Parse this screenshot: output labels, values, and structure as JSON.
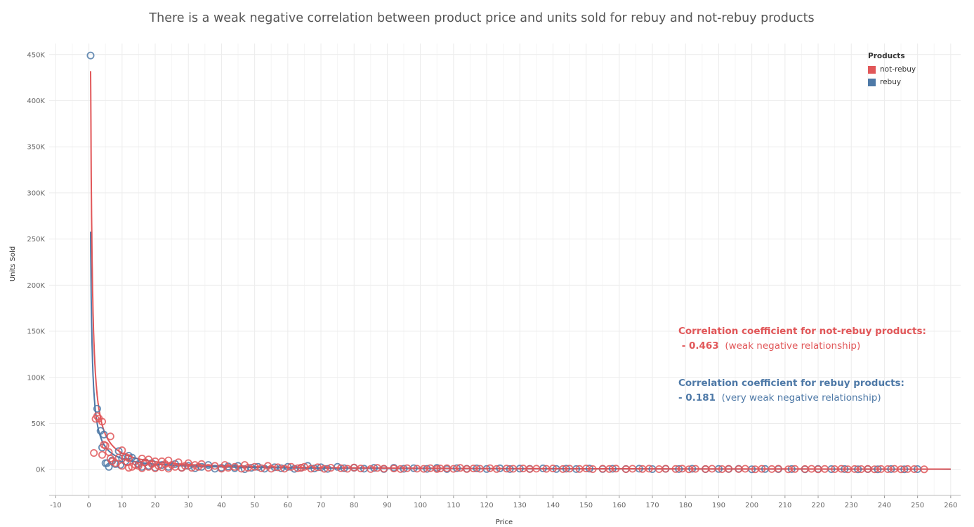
{
  "colors": {
    "not_rebuy": "#E15759",
    "rebuy": "#4E79A7",
    "grid": "#ececec",
    "text": "#555555"
  },
  "legend": {
    "title": "Products",
    "items": [
      {
        "label": "not-rebuy",
        "color": "#E15759"
      },
      {
        "label": "rebuy",
        "color": "#4E79A7"
      }
    ]
  },
  "annotations": {
    "not_rebuy": {
      "line1": "Correlation coefficient  for  not-rebuy products:",
      "value": " - 0.463",
      "desc": "(weak negative relationship)"
    },
    "rebuy": {
      "line1": "Correlation coefficient  for rebuy products:",
      "value": "- 0.181",
      "desc": "(very weak negative relationship)"
    }
  },
  "chart_data": {
    "type": "scatter",
    "title": "There is a weak negative correlation between product price and units sold for rebuy and not-rebuy products",
    "xlabel": "Price",
    "ylabel": "Units Sold",
    "xlim": [
      -12,
      263
    ],
    "ylim": [
      -28000,
      462000
    ],
    "x_ticks": [
      -10,
      0,
      10,
      20,
      30,
      40,
      50,
      60,
      70,
      80,
      90,
      100,
      110,
      120,
      130,
      140,
      150,
      160,
      170,
      180,
      190,
      200,
      210,
      220,
      230,
      240,
      250,
      260
    ],
    "y_ticks": [
      0,
      50000,
      100000,
      150000,
      200000,
      250000,
      300000,
      350000,
      400000,
      450000
    ],
    "y_tick_labels": [
      "0K",
      "50K",
      "100K",
      "150K",
      "200K",
      "250K",
      "300K",
      "350K",
      "400K",
      "450K"
    ],
    "grid": true,
    "legend_position": "top-right",
    "series": [
      {
        "name": "not-rebuy",
        "color": "#E15759",
        "points": [
          [
            1.5,
            18000
          ],
          [
            2,
            55000
          ],
          [
            2.5,
            58000
          ],
          [
            3,
            55500
          ],
          [
            4,
            52000
          ],
          [
            4,
            16000
          ],
          [
            4.5,
            27000
          ],
          [
            5,
            26000
          ],
          [
            6,
            19000
          ],
          [
            6.5,
            36000
          ],
          [
            6.5,
            12000
          ],
          [
            7,
            9000
          ],
          [
            8,
            7000
          ],
          [
            9,
            13000
          ],
          [
            10,
            21000
          ],
          [
            10,
            4000
          ],
          [
            11,
            14000
          ],
          [
            11.5,
            8000
          ],
          [
            12,
            12500
          ],
          [
            12,
            2000
          ],
          [
            13,
            3000
          ],
          [
            14,
            5000
          ],
          [
            15,
            4000
          ],
          [
            16,
            12000
          ],
          [
            16,
            1500
          ],
          [
            17,
            8000
          ],
          [
            18,
            3000
          ],
          [
            18,
            11000
          ],
          [
            19,
            6000
          ],
          [
            20,
            9000
          ],
          [
            20,
            1500
          ],
          [
            21,
            4000
          ],
          [
            22,
            9000
          ],
          [
            22,
            2500
          ],
          [
            23,
            6000
          ],
          [
            24,
            10000
          ],
          [
            24,
            1000
          ],
          [
            25,
            5000
          ],
          [
            26,
            3000
          ],
          [
            27,
            8000
          ],
          [
            28,
            2000
          ],
          [
            29,
            4000
          ],
          [
            30,
            7000
          ],
          [
            31,
            2000
          ],
          [
            32,
            5000
          ],
          [
            33,
            3000
          ],
          [
            34,
            6000
          ],
          [
            36,
            2000
          ],
          [
            38,
            4000
          ],
          [
            40,
            1000
          ],
          [
            41,
            5000
          ],
          [
            42,
            2000
          ],
          [
            44,
            3000
          ],
          [
            46,
            1000
          ],
          [
            47,
            5000
          ],
          [
            48,
            2000
          ],
          [
            50,
            3000
          ],
          [
            52,
            1500
          ],
          [
            54,
            4000
          ],
          [
            55,
            1000
          ],
          [
            57,
            2500
          ],
          [
            59,
            1000
          ],
          [
            61,
            3000
          ],
          [
            63,
            1500
          ],
          [
            64,
            2000
          ],
          [
            65,
            3000
          ],
          [
            67,
            1000
          ],
          [
            69,
            2500
          ],
          [
            71,
            800
          ],
          [
            73,
            2000
          ],
          [
            76,
            1500
          ],
          [
            78,
            900
          ],
          [
            80,
            2200
          ],
          [
            82,
            1200
          ],
          [
            85,
            600
          ],
          [
            87,
            1800
          ],
          [
            89,
            1000
          ],
          [
            92,
            1200
          ],
          [
            94,
            600
          ],
          [
            96,
            1500
          ],
          [
            99,
            1000
          ],
          [
            101,
            800
          ],
          [
            103,
            1500
          ],
          [
            105,
            600
          ],
          [
            106,
            1200
          ],
          [
            108,
            1500
          ],
          [
            110,
            800
          ],
          [
            112,
            1800
          ],
          [
            114,
            700
          ],
          [
            116,
            1200
          ],
          [
            118,
            900
          ],
          [
            121,
            1500
          ],
          [
            123,
            700
          ],
          [
            126,
            1100
          ],
          [
            128,
            900
          ],
          [
            131,
            1200
          ],
          [
            133,
            600
          ],
          [
            135,
            1000
          ],
          [
            138,
            800
          ],
          [
            140,
            1200
          ],
          [
            143,
            600
          ],
          [
            145,
            1000
          ],
          [
            148,
            700
          ],
          [
            150,
            1200
          ],
          [
            152,
            500
          ],
          [
            155,
            900
          ],
          [
            157,
            700
          ],
          [
            159,
            1100
          ],
          [
            162,
            500
          ],
          [
            164,
            900
          ],
          [
            167,
            700
          ],
          [
            169,
            1000
          ],
          [
            172,
            500
          ],
          [
            174,
            900
          ],
          [
            177,
            700
          ],
          [
            179,
            1000
          ],
          [
            181,
            400
          ],
          [
            183,
            800
          ],
          [
            186,
            600
          ],
          [
            188,
            900
          ],
          [
            191,
            500
          ],
          [
            193,
            800
          ],
          [
            196,
            600
          ],
          [
            198,
            900
          ],
          [
            201,
            400
          ],
          [
            203,
            800
          ],
          [
            206,
            600
          ],
          [
            208,
            900
          ],
          [
            211,
            400
          ],
          [
            213,
            700
          ],
          [
            216,
            600
          ],
          [
            218,
            800
          ],
          [
            220,
            400
          ],
          [
            222,
            700
          ],
          [
            225,
            500
          ],
          [
            227,
            800
          ],
          [
            229,
            400
          ],
          [
            231,
            600
          ],
          [
            233,
            500
          ],
          [
            235,
            700
          ],
          [
            237,
            400
          ],
          [
            239,
            600
          ],
          [
            241,
            500
          ],
          [
            243,
            800
          ],
          [
            245,
            400
          ],
          [
            247,
            600
          ],
          [
            249,
            500
          ],
          [
            252,
            300
          ]
        ]
      },
      {
        "name": "rebuy",
        "color": "#4E79A7",
        "points": [
          [
            0.5,
            449000
          ],
          [
            2.5,
            66000
          ],
          [
            3.5,
            42000
          ],
          [
            4,
            24000
          ],
          [
            4.5,
            38000
          ],
          [
            5,
            7000
          ],
          [
            5.5,
            7000
          ],
          [
            6,
            3000
          ],
          [
            7,
            10000
          ],
          [
            8,
            6000
          ],
          [
            9,
            20000
          ],
          [
            9.5,
            5000
          ],
          [
            10,
            12000
          ],
          [
            11,
            9000
          ],
          [
            12,
            15000
          ],
          [
            13,
            13000
          ],
          [
            14,
            9000
          ],
          [
            15,
            6000
          ],
          [
            16,
            3000
          ],
          [
            17,
            8000
          ],
          [
            18,
            4000
          ],
          [
            19,
            7000
          ],
          [
            20,
            2000
          ],
          [
            22,
            5000
          ],
          [
            24,
            3000
          ],
          [
            26,
            6000
          ],
          [
            28,
            2000
          ],
          [
            30,
            4000
          ],
          [
            32,
            1500
          ],
          [
            34,
            3000
          ],
          [
            36,
            5000
          ],
          [
            38,
            1000
          ],
          [
            40,
            2000
          ],
          [
            42,
            3500
          ],
          [
            44,
            1500
          ],
          [
            45,
            4000
          ],
          [
            47,
            500
          ],
          [
            49,
            2000
          ],
          [
            51,
            3000
          ],
          [
            53,
            1000
          ],
          [
            56,
            2500
          ],
          [
            58,
            1500
          ],
          [
            60,
            3000
          ],
          [
            62,
            800
          ],
          [
            64,
            2000
          ],
          [
            66,
            4000
          ],
          [
            68,
            1200
          ],
          [
            70,
            2500
          ],
          [
            72,
            800
          ],
          [
            75,
            3000
          ],
          [
            77,
            1500
          ],
          [
            80,
            2000
          ],
          [
            83,
            1000
          ],
          [
            86,
            1800
          ],
          [
            89,
            700
          ],
          [
            92,
            2000
          ],
          [
            95,
            900
          ],
          [
            98,
            1500
          ],
          [
            102,
            800
          ],
          [
            105,
            1800
          ],
          [
            108,
            600
          ],
          [
            111,
            1500
          ],
          [
            114,
            900
          ],
          [
            117,
            1300
          ],
          [
            120,
            700
          ],
          [
            124,
            1400
          ],
          [
            127,
            600
          ],
          [
            130,
            1100
          ],
          [
            133,
            800
          ],
          [
            137,
            1300
          ],
          [
            141,
            700
          ],
          [
            144,
            1000
          ],
          [
            147,
            600
          ],
          [
            151,
            1100
          ],
          [
            155,
            700
          ],
          [
            158,
            900
          ],
          [
            162,
            600
          ],
          [
            166,
            1000
          ],
          [
            170,
            500
          ],
          [
            174,
            800
          ],
          [
            178,
            600
          ],
          [
            182,
            900
          ],
          [
            186,
            500
          ],
          [
            190,
            700
          ],
          [
            193,
            600
          ],
          [
            196,
            800
          ],
          [
            200,
            400
          ],
          [
            204,
            700
          ],
          [
            208,
            500
          ],
          [
            212,
            600
          ],
          [
            216,
            400
          ],
          [
            220,
            700
          ],
          [
            224,
            500
          ],
          [
            228,
            600
          ],
          [
            232,
            400
          ],
          [
            235,
            500
          ],
          [
            238,
            400
          ],
          [
            242,
            600
          ],
          [
            246,
            400
          ],
          [
            250,
            500
          ]
        ]
      }
    ]
  }
}
